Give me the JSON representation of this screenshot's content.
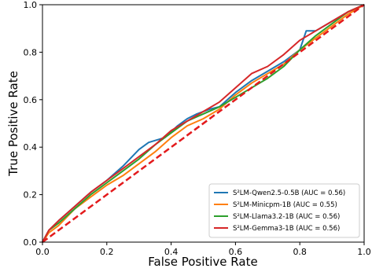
{
  "chart_data": {
    "type": "line",
    "title": "",
    "xlabel": "False Positive Rate",
    "ylabel": "True Positive Rate",
    "xlim": [
      0.0,
      1.0
    ],
    "ylim": [
      0.0,
      1.0
    ],
    "xticks": [
      "0.0",
      "0.2",
      "0.4",
      "0.6",
      "0.8",
      "1.0"
    ],
    "yticks": [
      "0.0",
      "0.2",
      "0.4",
      "0.6",
      "0.8",
      "1.0"
    ],
    "grid": false,
    "legend_position": "bottom-right",
    "reference_line": {
      "x": [
        0.0,
        1.0
      ],
      "y": [
        0.0,
        1.0
      ],
      "color": "#e31a1c",
      "style": "dashed"
    },
    "series": [
      {
        "name": "S²LM-Qwen2.5-0.5B (AUC = 0.56)",
        "color": "#1f77b4",
        "x": [
          0.0,
          0.02,
          0.05,
          0.1,
          0.15,
          0.2,
          0.25,
          0.3,
          0.33,
          0.38,
          0.42,
          0.45,
          0.48,
          0.5,
          0.52,
          0.55,
          0.6,
          0.65,
          0.7,
          0.75,
          0.8,
          0.82,
          0.85,
          0.9,
          0.95,
          1.0
        ],
        "y": [
          0.0,
          0.05,
          0.09,
          0.15,
          0.21,
          0.26,
          0.32,
          0.39,
          0.42,
          0.44,
          0.49,
          0.52,
          0.54,
          0.55,
          0.56,
          0.57,
          0.63,
          0.68,
          0.72,
          0.76,
          0.81,
          0.89,
          0.89,
          0.93,
          0.97,
          1.0
        ]
      },
      {
        "name": "S²LM-Minicpm-1B (AUC = 0.55)",
        "color": "#ff7f0e",
        "x": [
          0.0,
          0.02,
          0.05,
          0.1,
          0.15,
          0.2,
          0.25,
          0.3,
          0.35,
          0.4,
          0.45,
          0.5,
          0.55,
          0.6,
          0.65,
          0.7,
          0.75,
          0.8,
          0.85,
          0.9,
          0.95,
          1.0
        ],
        "y": [
          0.0,
          0.04,
          0.07,
          0.14,
          0.19,
          0.24,
          0.28,
          0.33,
          0.38,
          0.44,
          0.49,
          0.52,
          0.56,
          0.62,
          0.67,
          0.71,
          0.75,
          0.81,
          0.86,
          0.91,
          0.96,
          1.0
        ]
      },
      {
        "name": "S²LM-Llama3.2-1B (AUC = 0.56)",
        "color": "#2ca02c",
        "x": [
          0.0,
          0.02,
          0.05,
          0.1,
          0.15,
          0.2,
          0.25,
          0.3,
          0.35,
          0.4,
          0.45,
          0.5,
          0.55,
          0.6,
          0.65,
          0.7,
          0.75,
          0.8,
          0.85,
          0.9,
          0.95,
          1.0
        ],
        "y": [
          0.0,
          0.05,
          0.08,
          0.14,
          0.2,
          0.25,
          0.3,
          0.35,
          0.41,
          0.46,
          0.51,
          0.54,
          0.57,
          0.61,
          0.65,
          0.69,
          0.74,
          0.81,
          0.87,
          0.92,
          0.97,
          1.0
        ]
      },
      {
        "name": "S²LM-Gemma3-1B (AUC = 0.56)",
        "color": "#d62728",
        "x": [
          0.0,
          0.02,
          0.05,
          0.1,
          0.15,
          0.2,
          0.25,
          0.3,
          0.35,
          0.4,
          0.45,
          0.5,
          0.55,
          0.6,
          0.65,
          0.7,
          0.75,
          0.8,
          0.85,
          0.9,
          0.95,
          1.0
        ],
        "y": [
          0.0,
          0.05,
          0.09,
          0.15,
          0.21,
          0.26,
          0.31,
          0.36,
          0.41,
          0.47,
          0.51,
          0.55,
          0.59,
          0.65,
          0.71,
          0.74,
          0.79,
          0.85,
          0.89,
          0.93,
          0.97,
          1.0
        ]
      }
    ]
  }
}
